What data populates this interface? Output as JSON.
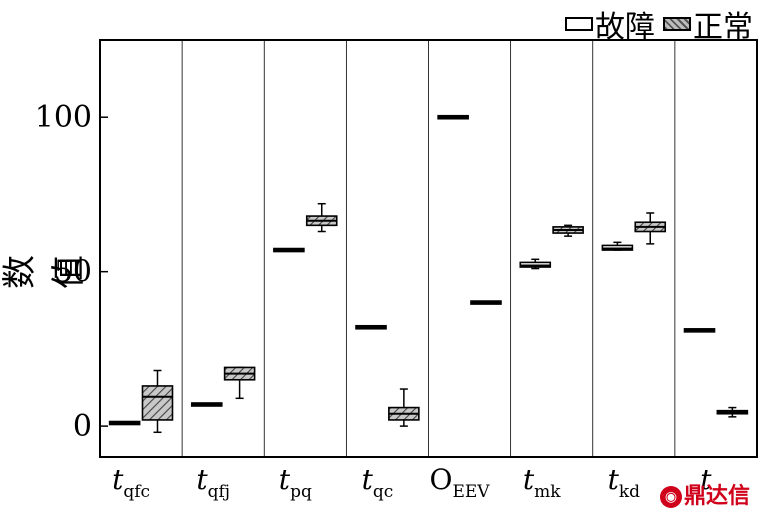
{
  "legend": {
    "fault": "故障",
    "normal": "正常"
  },
  "watermark": "鼎达信",
  "chart_data": {
    "type": "box",
    "ylabel": "数值",
    "ylim": [
      -10,
      125
    ],
    "yticks": [
      0,
      50,
      100
    ],
    "categories": [
      {
        "base": "t",
        "sub": "qfc",
        "italic": true
      },
      {
        "base": "t",
        "sub": "qfj",
        "italic": true
      },
      {
        "base": "t",
        "sub": "pq",
        "italic": true
      },
      {
        "base": "t",
        "sub": "qc",
        "italic": true
      },
      {
        "base": "O",
        "sub": "EEV",
        "italic": false
      },
      {
        "base": "t",
        "sub": "mk",
        "italic": true
      },
      {
        "base": "t",
        "sub": "kd",
        "italic": true
      },
      {
        "base": "t",
        "sub": "",
        "italic": true
      }
    ],
    "series": [
      {
        "name": "故障",
        "fill": "white",
        "boxes": [
          {
            "min": 0.8,
            "q1": 0.8,
            "median": 1,
            "q3": 1.2,
            "max": 1.2
          },
          {
            "min": 6.8,
            "q1": 6.8,
            "median": 7,
            "q3": 7.2,
            "max": 7.2
          },
          {
            "min": 56.8,
            "q1": 56.8,
            "median": 57,
            "q3": 57.2,
            "max": 57.2
          },
          {
            "min": 31.8,
            "q1": 31.8,
            "median": 32,
            "q3": 32.2,
            "max": 32.2
          },
          {
            "min": 99.8,
            "q1": 99.8,
            "median": 100,
            "q3": 100.2,
            "max": 100.2
          },
          {
            "min": 51,
            "q1": 51.5,
            "median": 52,
            "q3": 53,
            "max": 54
          },
          {
            "min": 57,
            "q1": 57,
            "median": 57.5,
            "q3": 58.5,
            "max": 59.5
          },
          {
            "min": 30.8,
            "q1": 30.8,
            "median": 31,
            "q3": 31.2,
            "max": 31.2
          }
        ]
      },
      {
        "name": "正常",
        "fill": "hatch",
        "boxes": [
          {
            "min": -2,
            "q1": 2,
            "median": 9.5,
            "q3": 13,
            "max": 18
          },
          {
            "min": 9,
            "q1": 15,
            "median": 17,
            "q3": 19,
            "max": 19
          },
          {
            "min": 63,
            "q1": 65,
            "median": 66.5,
            "q3": 68,
            "max": 72
          },
          {
            "min": 0,
            "q1": 2,
            "median": 4,
            "q3": 6,
            "max": 12
          },
          {
            "min": 39.8,
            "q1": 39.8,
            "median": 40,
            "q3": 40.2,
            "max": 40.2
          },
          {
            "min": 61.5,
            "q1": 62.5,
            "median": 63.5,
            "q3": 64.5,
            "max": 65
          },
          {
            "min": 59,
            "q1": 63,
            "median": 64.5,
            "q3": 66,
            "max": 69
          },
          {
            "min": 3,
            "q1": 4,
            "median": 4.5,
            "q3": 5,
            "max": 6
          }
        ]
      }
    ]
  }
}
